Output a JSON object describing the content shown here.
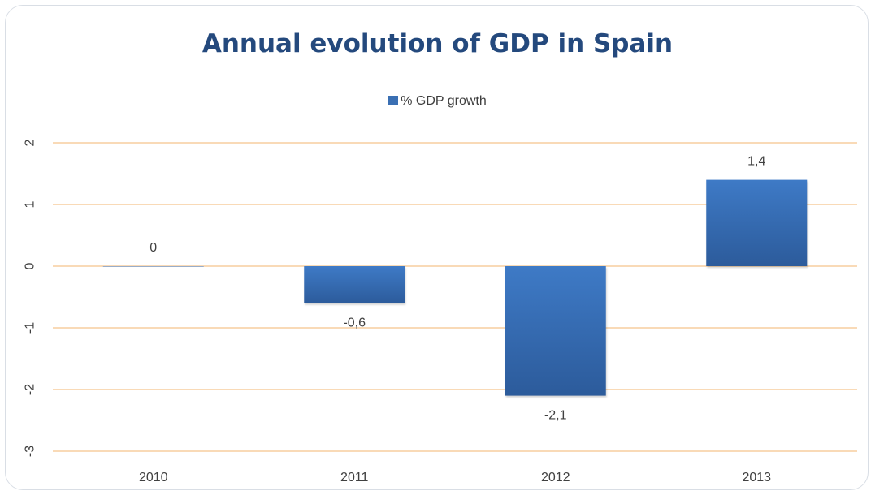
{
  "chart_data": {
    "type": "bar",
    "title": "Annual evolution of GDP in Spain",
    "xlabel": "",
    "ylabel": "",
    "categories": [
      "2010",
      "2011",
      "2012",
      "2013"
    ],
    "series": [
      {
        "name": "% GDP growth",
        "values": [
          0,
          -0.6,
          -2.1,
          1.4
        ],
        "data_labels": [
          "0",
          "-0,6",
          "-2,1",
          "1,4"
        ],
        "color": "#3a6fb3"
      }
    ],
    "ylim": [
      -3,
      2
    ],
    "yticks": [
      "2",
      "1",
      "0",
      "-1",
      "-2",
      "-3"
    ],
    "ytick_values": [
      2,
      1,
      0,
      -1,
      -2,
      -3
    ],
    "grid": true,
    "gridline_color": "#f5c48c",
    "legend_position": "top",
    "title_color": "#24497d"
  }
}
